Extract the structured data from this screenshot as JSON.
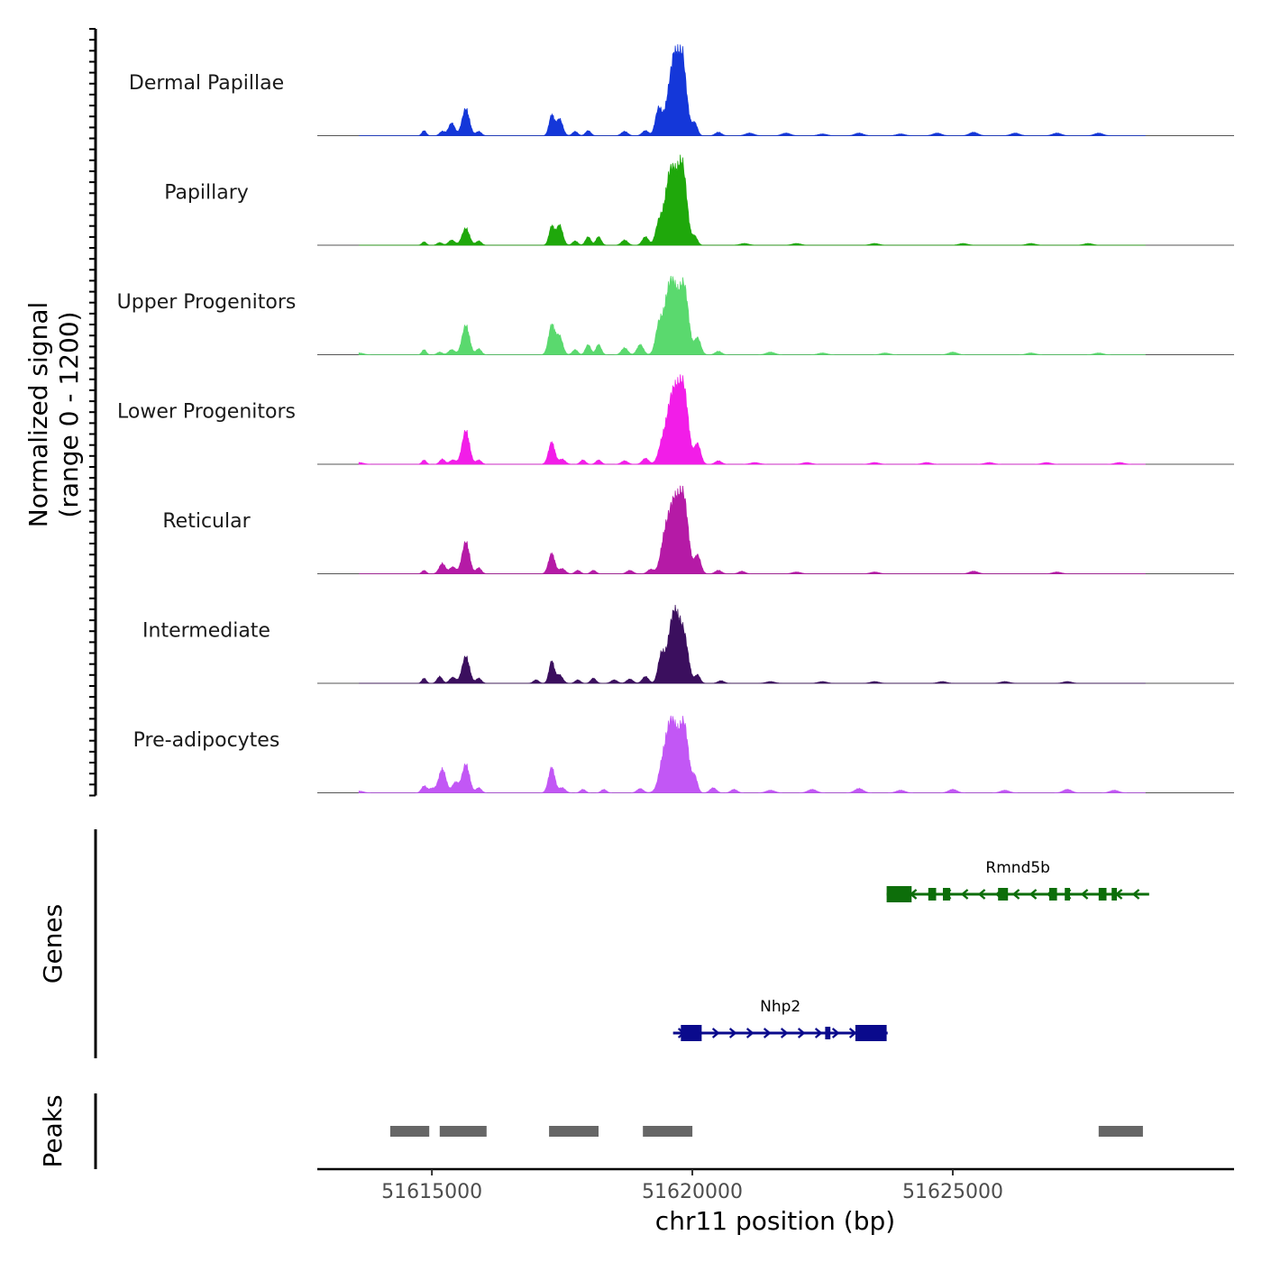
{
  "chart_data": {
    "type": "area",
    "title": "",
    "ylabel_line1": "Normalized signal",
    "ylabel_line2": "(range 0 - 1200)",
    "xlabel": "chr11 position (bp)",
    "genes_label": "Genes",
    "peaks_label": "Peaks",
    "chromosome": "chr11",
    "xlim": [
      51612800,
      51630400
    ],
    "ylim": [
      0,
      1200
    ],
    "x_ticks": [
      {
        "value": 51615000,
        "label": "51615000"
      },
      {
        "value": 51620000,
        "label": "51620000"
      },
      {
        "value": 51625000,
        "label": "51625000"
      }
    ],
    "x_range_bp": {
      "start": 51613600,
      "end": 51628700
    },
    "tracks": [
      {
        "name": "Dermal Papillae",
        "color": "#1437d9",
        "peaks": [
          [
            51614850,
            0.06,
            40
          ],
          [
            51615200,
            0.05,
            50
          ],
          [
            51615380,
            0.15,
            60
          ],
          [
            51615650,
            0.32,
            70
          ],
          [
            51615900,
            0.05,
            50
          ],
          [
            51617300,
            0.24,
            50
          ],
          [
            51617450,
            0.2,
            60
          ],
          [
            51617750,
            0.05,
            50
          ],
          [
            51618000,
            0.06,
            50
          ],
          [
            51618700,
            0.05,
            60
          ],
          [
            51619100,
            0.06,
            60
          ],
          [
            51619350,
            0.3,
            60
          ],
          [
            51619650,
            0.85,
            120
          ],
          [
            51619800,
            0.7,
            90
          ],
          [
            51620050,
            0.14,
            50
          ],
          [
            51620500,
            0.04,
            60
          ],
          [
            51621100,
            0.03,
            80
          ],
          [
            51621800,
            0.03,
            80
          ],
          [
            51622500,
            0.02,
            80
          ],
          [
            51623200,
            0.03,
            80
          ],
          [
            51624000,
            0.02,
            80
          ],
          [
            51624700,
            0.03,
            80
          ],
          [
            51625400,
            0.04,
            80
          ],
          [
            51626200,
            0.03,
            80
          ],
          [
            51627000,
            0.03,
            80
          ],
          [
            51627800,
            0.03,
            80
          ]
        ]
      },
      {
        "name": "Papillary",
        "color": "#1fa80b",
        "peaks": [
          [
            51614850,
            0.04,
            40
          ],
          [
            51615150,
            0.03,
            50
          ],
          [
            51615380,
            0.06,
            60
          ],
          [
            51615650,
            0.2,
            70
          ],
          [
            51615900,
            0.05,
            50
          ],
          [
            51617300,
            0.22,
            50
          ],
          [
            51617450,
            0.24,
            60
          ],
          [
            51617750,
            0.05,
            50
          ],
          [
            51618000,
            0.1,
            50
          ],
          [
            51618200,
            0.1,
            50
          ],
          [
            51618700,
            0.06,
            60
          ],
          [
            51619100,
            0.1,
            60
          ],
          [
            51619350,
            0.2,
            60
          ],
          [
            51619600,
            0.92,
            120
          ],
          [
            51619820,
            0.8,
            80
          ],
          [
            51620050,
            0.1,
            50
          ],
          [
            51621000,
            0.02,
            80
          ],
          [
            51622000,
            0.02,
            80
          ],
          [
            51623500,
            0.02,
            80
          ],
          [
            51625200,
            0.02,
            80
          ],
          [
            51626500,
            0.02,
            80
          ],
          [
            51627600,
            0.02,
            80
          ]
        ]
      },
      {
        "name": "Upper Progenitors",
        "color": "#5ad96e",
        "peaks": [
          [
            51613600,
            0.02,
            80
          ],
          [
            51614850,
            0.06,
            40
          ],
          [
            51615150,
            0.03,
            50
          ],
          [
            51615380,
            0.06,
            60
          ],
          [
            51615650,
            0.35,
            70
          ],
          [
            51615900,
            0.07,
            50
          ],
          [
            51617300,
            0.35,
            60
          ],
          [
            51617450,
            0.22,
            60
          ],
          [
            51617750,
            0.06,
            50
          ],
          [
            51618000,
            0.12,
            50
          ],
          [
            51618200,
            0.12,
            50
          ],
          [
            51618700,
            0.08,
            60
          ],
          [
            51619000,
            0.12,
            60
          ],
          [
            51619350,
            0.25,
            60
          ],
          [
            51619600,
            0.9,
            130
          ],
          [
            51619850,
            0.7,
            80
          ],
          [
            51620100,
            0.2,
            60
          ],
          [
            51620500,
            0.04,
            60
          ],
          [
            51621500,
            0.03,
            80
          ],
          [
            51622500,
            0.02,
            80
          ],
          [
            51623700,
            0.02,
            80
          ],
          [
            51625000,
            0.03,
            80
          ],
          [
            51626500,
            0.02,
            80
          ],
          [
            51627800,
            0.02,
            80
          ]
        ]
      },
      {
        "name": "Lower Progenitors",
        "color": "#f21de8",
        "peaks": [
          [
            51613600,
            0.02,
            80
          ],
          [
            51614850,
            0.05,
            40
          ],
          [
            51615200,
            0.06,
            50
          ],
          [
            51615400,
            0.05,
            60
          ],
          [
            51615650,
            0.4,
            70
          ],
          [
            51615900,
            0.05,
            50
          ],
          [
            51617300,
            0.26,
            60
          ],
          [
            51617500,
            0.06,
            60
          ],
          [
            51617900,
            0.05,
            50
          ],
          [
            51618200,
            0.05,
            50
          ],
          [
            51618700,
            0.04,
            60
          ],
          [
            51619100,
            0.07,
            60
          ],
          [
            51619400,
            0.1,
            60
          ],
          [
            51619650,
            0.9,
            140
          ],
          [
            51619850,
            0.6,
            80
          ],
          [
            51620100,
            0.24,
            60
          ],
          [
            51620500,
            0.04,
            60
          ],
          [
            51621200,
            0.02,
            80
          ],
          [
            51622200,
            0.02,
            80
          ],
          [
            51623500,
            0.02,
            80
          ],
          [
            51624500,
            0.02,
            80
          ],
          [
            51625700,
            0.02,
            80
          ],
          [
            51626800,
            0.02,
            80
          ],
          [
            51628200,
            0.02,
            80
          ]
        ]
      },
      {
        "name": "Reticular",
        "color": "#b51aa6",
        "peaks": [
          [
            51614850,
            0.04,
            40
          ],
          [
            51615200,
            0.12,
            60
          ],
          [
            51615400,
            0.08,
            60
          ],
          [
            51615650,
            0.38,
            70
          ],
          [
            51615900,
            0.07,
            50
          ],
          [
            51617300,
            0.24,
            60
          ],
          [
            51617500,
            0.06,
            60
          ],
          [
            51617800,
            0.04,
            50
          ],
          [
            51618100,
            0.04,
            50
          ],
          [
            51618800,
            0.04,
            60
          ],
          [
            51619200,
            0.05,
            60
          ],
          [
            51619450,
            0.2,
            70
          ],
          [
            51619650,
            0.88,
            130
          ],
          [
            51619850,
            0.65,
            80
          ],
          [
            51620100,
            0.22,
            60
          ],
          [
            51620500,
            0.04,
            60
          ],
          [
            51620950,
            0.03,
            60
          ],
          [
            51622000,
            0.02,
            80
          ],
          [
            51623500,
            0.02,
            80
          ],
          [
            51625400,
            0.03,
            80
          ],
          [
            51627000,
            0.02,
            80
          ]
        ]
      },
      {
        "name": "Intermediate",
        "color": "#3b0f5e",
        "peaks": [
          [
            51614850,
            0.06,
            40
          ],
          [
            51615150,
            0.08,
            50
          ],
          [
            51615400,
            0.07,
            60
          ],
          [
            51615650,
            0.32,
            70
          ],
          [
            51615900,
            0.06,
            50
          ],
          [
            51617000,
            0.04,
            50
          ],
          [
            51617300,
            0.26,
            50
          ],
          [
            51617450,
            0.1,
            60
          ],
          [
            51617800,
            0.04,
            50
          ],
          [
            51618100,
            0.06,
            50
          ],
          [
            51618500,
            0.04,
            60
          ],
          [
            51618800,
            0.05,
            60
          ],
          [
            51619100,
            0.08,
            60
          ],
          [
            51619400,
            0.3,
            60
          ],
          [
            51619650,
            0.85,
            110
          ],
          [
            51619850,
            0.45,
            80
          ],
          [
            51620100,
            0.1,
            50
          ],
          [
            51620550,
            0.03,
            60
          ],
          [
            51621500,
            0.02,
            80
          ],
          [
            51622500,
            0.02,
            80
          ],
          [
            51623500,
            0.02,
            80
          ],
          [
            51624800,
            0.02,
            80
          ],
          [
            51626000,
            0.02,
            80
          ],
          [
            51627200,
            0.02,
            80
          ]
        ]
      },
      {
        "name": "Pre-adipocytes",
        "color": "#c257f5",
        "peaks": [
          [
            51613600,
            0.02,
            80
          ],
          [
            51614850,
            0.08,
            50
          ],
          [
            51615000,
            0.05,
            60
          ],
          [
            51615200,
            0.28,
            70
          ],
          [
            51615450,
            0.12,
            60
          ],
          [
            51615650,
            0.34,
            70
          ],
          [
            51615900,
            0.06,
            50
          ],
          [
            51617300,
            0.3,
            60
          ],
          [
            51617500,
            0.06,
            60
          ],
          [
            51617900,
            0.04,
            50
          ],
          [
            51618300,
            0.04,
            50
          ],
          [
            51619000,
            0.05,
            60
          ],
          [
            51619400,
            0.1,
            60
          ],
          [
            51619600,
            0.88,
            130
          ],
          [
            51619850,
            0.7,
            80
          ],
          [
            51620050,
            0.18,
            50
          ],
          [
            51620400,
            0.06,
            60
          ],
          [
            51620800,
            0.04,
            60
          ],
          [
            51621500,
            0.03,
            80
          ],
          [
            51622300,
            0.04,
            80
          ],
          [
            51623200,
            0.05,
            80
          ],
          [
            51624000,
            0.03,
            80
          ],
          [
            51625000,
            0.04,
            80
          ],
          [
            51626000,
            0.03,
            80
          ],
          [
            51627200,
            0.04,
            80
          ],
          [
            51628100,
            0.03,
            80
          ]
        ]
      }
    ],
    "genes": [
      {
        "name": "Rmnd5b",
        "strand": "-",
        "color": "#0d6e0a",
        "row": 0,
        "start": 51623730,
        "end": 51628770,
        "exons": [
          [
            51623730,
            51624210
          ],
          [
            51624530,
            51624680
          ],
          [
            51624810,
            51624950
          ],
          [
            51625870,
            51626060
          ],
          [
            51626850,
            51627000
          ],
          [
            51627150,
            51627250
          ],
          [
            51627800,
            51627950
          ],
          [
            51628050,
            51628150
          ]
        ]
      },
      {
        "name": "Nhp2",
        "strand": "+",
        "color": "#0a0a8c",
        "row": 1,
        "start": 51619630,
        "end": 51623750,
        "exons": [
          [
            51619780,
            51620180
          ],
          [
            51622550,
            51622650
          ],
          [
            51623130,
            51623730
          ]
        ]
      }
    ],
    "peaks": [
      {
        "start": 51614200,
        "end": 51614950
      },
      {
        "start": 51615150,
        "end": 51616050
      },
      {
        "start": 51617250,
        "end": 51618200
      },
      {
        "start": 51619050,
        "end": 51620000
      },
      {
        "start": 51627800,
        "end": 51628650
      }
    ]
  }
}
